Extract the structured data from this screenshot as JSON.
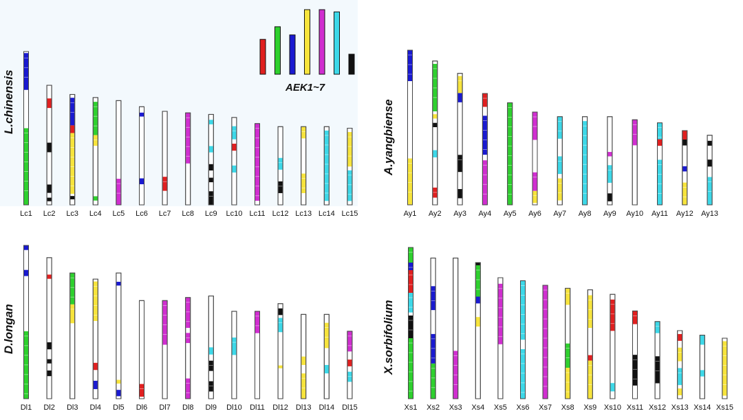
{
  "legend": {
    "label": "AEK1~7",
    "colors": [
      "#e02020",
      "#2ed02e",
      "#1a1ad0",
      "#f7e43c",
      "#d02ed0",
      "#3dd8e8",
      "#111111"
    ],
    "heights": [
      0.47,
      0.64,
      0.53,
      0.87,
      0.87,
      0.84,
      0.27
    ]
  },
  "palette": {
    "red": "#e02020",
    "green": "#2ed02e",
    "blue": "#1a1ad0",
    "yellow": "#f7e43c",
    "magenta": "#d02ed0",
    "cyan": "#3dd8e8",
    "black": "#111111"
  },
  "panels": [
    {
      "species": "L.chinensis",
      "chromosomes": [
        {
          "name": "Lc1",
          "length": 1.0,
          "bands": [
            [
              0.01,
              0.25,
              "blue"
            ],
            [
              0.5,
              1.0,
              "green"
            ]
          ]
        },
        {
          "name": "Lc2",
          "length": 0.78,
          "bands": [
            [
              0.11,
              0.19,
              "red"
            ],
            [
              0.48,
              0.56,
              "black"
            ],
            [
              0.83,
              0.9,
              "black"
            ],
            [
              0.94,
              0.97,
              "black"
            ]
          ]
        },
        {
          "name": "Lc3",
          "length": 0.72,
          "bands": [
            [
              0.03,
              0.28,
              "blue"
            ],
            [
              0.28,
              0.35,
              "red"
            ],
            [
              0.35,
              0.9,
              "yellow"
            ],
            [
              0.92,
              0.95,
              "black"
            ]
          ]
        },
        {
          "name": "Lc4",
          "length": 0.7,
          "bands": [
            [
              0.04,
              0.35,
              "green"
            ],
            [
              0.35,
              0.45,
              "yellow"
            ],
            [
              0.92,
              0.96,
              "green"
            ]
          ]
        },
        {
          "name": "Lc5",
          "length": 0.68,
          "bands": [
            [
              0.75,
              1.0,
              "magenta"
            ]
          ]
        },
        {
          "name": "Lc6",
          "length": 0.64,
          "bands": [
            [
              0.06,
              0.1,
              "blue"
            ],
            [
              0.73,
              0.79,
              "blue"
            ]
          ]
        },
        {
          "name": "Lc7",
          "length": 0.61,
          "bands": [
            [
              0.7,
              0.85,
              "red"
            ]
          ]
        },
        {
          "name": "Lc8",
          "length": 0.6,
          "bands": [
            [
              0.0,
              0.55,
              "magenta"
            ]
          ]
        },
        {
          "name": "Lc9",
          "length": 0.59,
          "bands": [
            [
              0.06,
              0.11,
              "cyan"
            ],
            [
              0.35,
              0.42,
              "cyan"
            ],
            [
              0.55,
              0.62,
              "black"
            ],
            [
              0.7,
              0.75,
              "black"
            ],
            [
              0.85,
              1.0,
              "black"
            ]
          ]
        },
        {
          "name": "Lc10",
          "length": 0.57,
          "bands": [
            [
              0.1,
              0.25,
              "cyan"
            ],
            [
              0.3,
              0.38,
              "red"
            ],
            [
              0.55,
              0.63,
              "cyan"
            ]
          ]
        },
        {
          "name": "Lc11",
          "length": 0.53,
          "bands": [
            [
              0.0,
              0.95,
              "magenta"
            ]
          ]
        },
        {
          "name": "Lc12",
          "length": 0.51,
          "bands": [
            [
              0.4,
              0.55,
              "cyan"
            ],
            [
              0.7,
              0.85,
              "black"
            ]
          ]
        },
        {
          "name": "Lc13",
          "length": 0.51,
          "bands": [
            [
              0.0,
              0.15,
              "yellow"
            ],
            [
              0.6,
              0.85,
              "yellow"
            ]
          ]
        },
        {
          "name": "Lc14",
          "length": 0.51,
          "bands": [
            [
              0.05,
              0.95,
              "cyan"
            ]
          ]
        },
        {
          "name": "Lc15",
          "length": 0.5,
          "bands": [
            [
              0.05,
              0.5,
              "yellow"
            ],
            [
              0.55,
              0.95,
              "cyan"
            ]
          ]
        }
      ]
    },
    {
      "species": "A.yangbiense",
      "chromosomes": [
        {
          "name": "Ay1",
          "length": 1.0,
          "bands": [
            [
              0.0,
              0.2,
              "blue"
            ],
            [
              0.7,
              1.0,
              "yellow"
            ]
          ]
        },
        {
          "name": "Ay2",
          "length": 0.93,
          "bands": [
            [
              0.02,
              0.35,
              "green"
            ],
            [
              0.37,
              0.4,
              "yellow"
            ],
            [
              0.43,
              0.46,
              "black"
            ],
            [
              0.62,
              0.67,
              "cyan"
            ],
            [
              0.88,
              0.95,
              "red"
            ]
          ]
        },
        {
          "name": "Ay3",
          "length": 0.85,
          "bands": [
            [
              0.02,
              0.15,
              "yellow"
            ],
            [
              0.15,
              0.22,
              "blue"
            ],
            [
              0.62,
              0.75,
              "black"
            ],
            [
              0.88,
              0.95,
              "black"
            ]
          ]
        },
        {
          "name": "Ay4",
          "length": 0.72,
          "bands": [
            [
              0.0,
              0.12,
              "red"
            ],
            [
              0.2,
              0.55,
              "blue"
            ],
            [
              0.6,
              1.0,
              "magenta"
            ]
          ]
        },
        {
          "name": "Ay5",
          "length": 0.66,
          "bands": [
            [
              0.0,
              1.0,
              "green"
            ]
          ]
        },
        {
          "name": "Ay6",
          "length": 0.6,
          "bands": [
            [
              0.0,
              0.3,
              "magenta"
            ],
            [
              0.65,
              0.85,
              "magenta"
            ],
            [
              0.85,
              0.98,
              "yellow"
            ]
          ]
        },
        {
          "name": "Ay7",
          "length": 0.57,
          "bands": [
            [
              0.0,
              0.25,
              "cyan"
            ],
            [
              0.45,
              0.65,
              "cyan"
            ],
            [
              0.7,
              0.95,
              "yellow"
            ]
          ]
        },
        {
          "name": "Ay8",
          "length": 0.57,
          "bands": [
            [
              0.05,
              1.0,
              "cyan"
            ]
          ]
        },
        {
          "name": "Ay9",
          "length": 0.57,
          "bands": [
            [
              0.4,
              0.45,
              "magenta"
            ],
            [
              0.55,
              0.75,
              "cyan"
            ],
            [
              0.87,
              0.96,
              "black"
            ]
          ]
        },
        {
          "name": "Ay10",
          "length": 0.55,
          "bands": [
            [
              0.0,
              0.3,
              "magenta"
            ]
          ]
        },
        {
          "name": "Ay11",
          "length": 0.53,
          "bands": [
            [
              0.0,
              0.25,
              "cyan"
            ],
            [
              0.2,
              0.28,
              "red"
            ],
            [
              0.45,
              1.0,
              "cyan"
            ]
          ]
        },
        {
          "name": "Ay12",
          "length": 0.48,
          "bands": [
            [
              0.0,
              0.12,
              "red"
            ],
            [
              0.12,
              0.2,
              "black"
            ],
            [
              0.48,
              0.55,
              "blue"
            ],
            [
              0.7,
              1.0,
              "yellow"
            ]
          ]
        },
        {
          "name": "Ay13",
          "length": 0.45,
          "bands": [
            [
              0.08,
              0.15,
              "black"
            ],
            [
              0.35,
              0.45,
              "black"
            ],
            [
              0.6,
              1.0,
              "cyan"
            ]
          ]
        }
      ]
    },
    {
      "species": "D.longan",
      "chromosomes": [
        {
          "name": "Dl1",
          "length": 1.0,
          "bands": [
            [
              0.0,
              0.03,
              "blue"
            ],
            [
              0.16,
              0.2,
              "blue"
            ],
            [
              0.56,
              1.0,
              "green"
            ]
          ]
        },
        {
          "name": "Dl2",
          "length": 0.92,
          "bands": [
            [
              0.12,
              0.15,
              "red"
            ],
            [
              0.6,
              0.65,
              "black"
            ],
            [
              0.72,
              0.75,
              "black"
            ],
            [
              0.8,
              0.84,
              "black"
            ]
          ]
        },
        {
          "name": "Dl3",
          "length": 0.82,
          "bands": [
            [
              0.0,
              0.25,
              "green"
            ],
            [
              0.25,
              0.4,
              "yellow"
            ]
          ]
        },
        {
          "name": "Dl4",
          "length": 0.78,
          "bands": [
            [
              0.02,
              0.35,
              "yellow"
            ],
            [
              0.7,
              0.76,
              "red"
            ],
            [
              0.85,
              0.92,
              "blue"
            ]
          ]
        },
        {
          "name": "Dl5",
          "length": 0.82,
          "bands": [
            [
              0.07,
              0.1,
              "blue"
            ],
            [
              0.85,
              0.88,
              "yellow"
            ],
            [
              0.93,
              0.98,
              "blue"
            ]
          ]
        },
        {
          "name": "Dl6",
          "length": 0.64,
          "bands": [
            [
              0.85,
              0.98,
              "red"
            ]
          ]
        },
        {
          "name": "Dl7",
          "length": 0.64,
          "bands": [
            [
              0.0,
              0.45,
              "magenta"
            ]
          ]
        },
        {
          "name": "Dl8",
          "length": 0.66,
          "bands": [
            [
              0.0,
              0.3,
              "magenta"
            ],
            [
              0.35,
              0.45,
              "magenta"
            ],
            [
              0.8,
              1.0,
              "magenta"
            ]
          ]
        },
        {
          "name": "Dl9",
          "length": 0.67,
          "bands": [
            [
              0.5,
              0.57,
              "cyan"
            ],
            [
              0.63,
              0.73,
              "black"
            ],
            [
              0.83,
              0.93,
              "black"
            ]
          ]
        },
        {
          "name": "Dl10",
          "length": 0.57,
          "bands": [
            [
              0.3,
              0.5,
              "cyan"
            ]
          ]
        },
        {
          "name": "Dl11",
          "length": 0.57,
          "bands": [
            [
              0.0,
              0.25,
              "magenta"
            ]
          ]
        },
        {
          "name": "Dl12",
          "length": 0.62,
          "bands": [
            [
              0.05,
              0.12,
              "black"
            ],
            [
              0.15,
              0.3,
              "cyan"
            ],
            [
              0.65,
              0.68,
              "yellow"
            ]
          ]
        },
        {
          "name": "Dl13",
          "length": 0.55,
          "bands": [
            [
              0.5,
              0.6,
              "yellow"
            ],
            [
              0.7,
              1.0,
              "yellow"
            ]
          ]
        },
        {
          "name": "Dl14",
          "length": 0.55,
          "bands": [
            [
              0.1,
              0.4,
              "yellow"
            ],
            [
              0.6,
              0.7,
              "cyan"
            ]
          ]
        },
        {
          "name": "Dl15",
          "length": 0.44,
          "bands": [
            [
              0.0,
              0.3,
              "magenta"
            ],
            [
              0.42,
              0.52,
              "red"
            ],
            [
              0.6,
              0.75,
              "cyan"
            ]
          ]
        }
      ]
    },
    {
      "species": "X.sorbifolium",
      "chromosomes": [
        {
          "name": "Xs1",
          "length": 1.0,
          "bands": [
            [
              0.0,
              0.1,
              "green"
            ],
            [
              0.1,
              0.2,
              "blue"
            ],
            [
              0.15,
              0.3,
              "red"
            ],
            [
              0.3,
              0.43,
              "cyan"
            ],
            [
              0.45,
              0.6,
              "black"
            ],
            [
              0.6,
              1.0,
              "green"
            ]
          ]
        },
        {
          "name": "Xs2",
          "length": 0.93,
          "bands": [
            [
              0.2,
              0.37,
              "blue"
            ],
            [
              0.54,
              0.75,
              "blue"
            ],
            [
              0.75,
              1.0,
              "green"
            ]
          ]
        },
        {
          "name": "Xs3",
          "length": 0.93,
          "bands": [
            [
              0.66,
              1.0,
              "magenta"
            ]
          ]
        },
        {
          "name": "Xs4",
          "length": 0.9,
          "bands": [
            [
              0.0,
              0.02,
              "black"
            ],
            [
              0.02,
              0.25,
              "green"
            ],
            [
              0.25,
              0.3,
              "blue"
            ],
            [
              0.4,
              0.47,
              "yellow"
            ]
          ]
        },
        {
          "name": "Xs5",
          "length": 0.8,
          "bands": [
            [
              0.05,
              0.55,
              "magenta"
            ]
          ]
        },
        {
          "name": "Xs6",
          "length": 0.78,
          "bands": [
            [
              0.0,
              0.5,
              "cyan"
            ],
            [
              0.58,
              1.0,
              "cyan"
            ]
          ]
        },
        {
          "name": "Xs7",
          "length": 0.75,
          "bands": [
            [
              0.0,
              1.0,
              "magenta"
            ]
          ]
        },
        {
          "name": "Xs8",
          "length": 0.73,
          "bands": [
            [
              0.0,
              0.15,
              "yellow"
            ],
            [
              0.5,
              0.72,
              "green"
            ],
            [
              0.72,
              1.0,
              "yellow"
            ]
          ]
        },
        {
          "name": "Xs9",
          "length": 0.72,
          "bands": [
            [
              0.05,
              0.35,
              "yellow"
            ],
            [
              0.6,
              0.65,
              "red"
            ],
            [
              0.65,
              1.0,
              "yellow"
            ]
          ]
        },
        {
          "name": "Xs10",
          "length": 0.69,
          "bands": [
            [
              0.05,
              0.35,
              "red"
            ],
            [
              0.85,
              0.93,
              "cyan"
            ]
          ]
        },
        {
          "name": "Xs11",
          "length": 0.58,
          "bands": [
            [
              0.0,
              0.15,
              "red"
            ],
            [
              0.5,
              0.85,
              "black"
            ]
          ]
        },
        {
          "name": "Xs12",
          "length": 0.51,
          "bands": [
            [
              0.0,
              0.15,
              "cyan"
            ],
            [
              0.45,
              0.8,
              "black"
            ]
          ]
        },
        {
          "name": "Xs13",
          "length": 0.45,
          "bands": [
            [
              0.05,
              0.15,
              "red"
            ],
            [
              0.25,
              0.45,
              "yellow"
            ],
            [
              0.55,
              0.8,
              "cyan"
            ],
            [
              0.85,
              0.95,
              "yellow"
            ]
          ]
        },
        {
          "name": "Xs14",
          "length": 0.42,
          "bands": [
            [
              0.0,
              0.15,
              "cyan"
            ],
            [
              0.55,
              0.65,
              "cyan"
            ]
          ]
        },
        {
          "name": "Xs15",
          "length": 0.4,
          "bands": [
            [
              0.05,
              0.95,
              "yellow"
            ]
          ]
        }
      ]
    }
  ]
}
